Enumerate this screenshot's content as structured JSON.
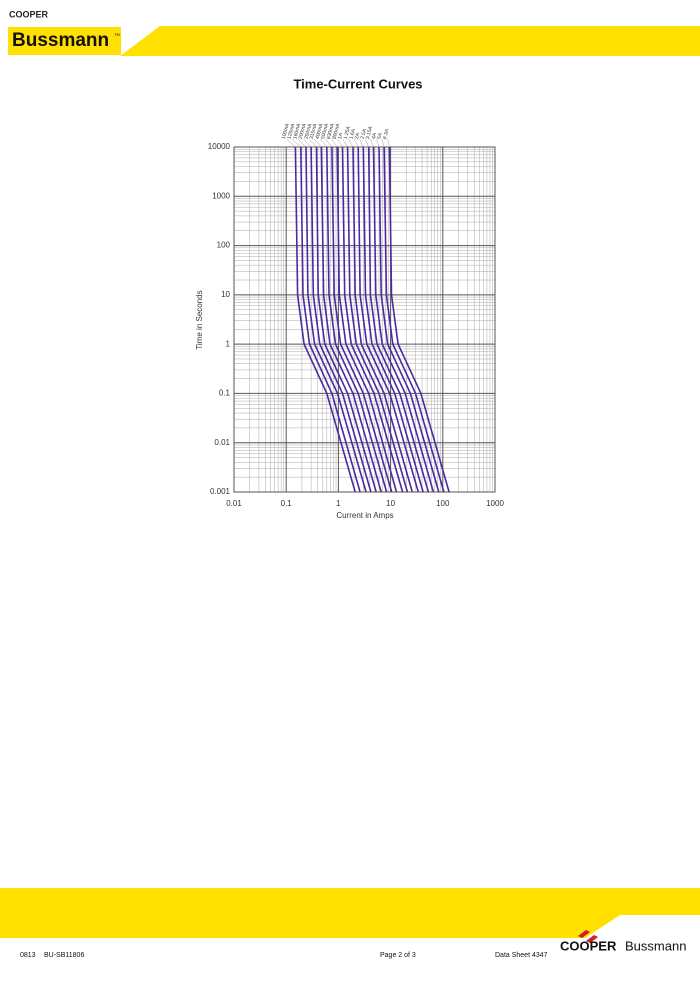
{
  "header": {
    "brand_top": "COOPER",
    "brand": "Bussmann",
    "trademark": "™"
  },
  "chart_data": {
    "type": "line",
    "title": "Time-Current Curves",
    "x_label": "Current in Amps",
    "y_label": "Time in Seconds",
    "log_x": true,
    "log_y": true,
    "grid": true,
    "color": "#4b2aa0",
    "xlim": [
      0.01,
      1000
    ],
    "xticks": [
      0.01,
      0.1,
      1,
      10,
      100,
      1000
    ],
    "ylim": [
      0.001,
      10000
    ],
    "yticks": [
      0.001,
      0.01,
      0.1,
      1,
      10,
      100,
      1000,
      10000
    ],
    "series": [
      {
        "name": "100mA",
        "x": [
          0.15,
          0.165,
          0.22,
          0.6,
          2.1
        ],
        "values": [
          10000,
          10,
          1,
          0.1,
          0.001
        ]
      },
      {
        "name": "125mA",
        "x": [
          0.19,
          0.21,
          0.28,
          0.75,
          2.6
        ],
        "values": [
          10000,
          10,
          1,
          0.1,
          0.001
        ]
      },
      {
        "name": "160mA",
        "x": [
          0.24,
          0.26,
          0.35,
          0.96,
          3.4
        ],
        "values": [
          10000,
          10,
          1,
          0.1,
          0.001
        ]
      },
      {
        "name": "200mA",
        "x": [
          0.3,
          0.33,
          0.44,
          1.2,
          4.2
        ],
        "values": [
          10000,
          10,
          1,
          0.1,
          0.001
        ]
      },
      {
        "name": "250mA",
        "x": [
          0.38,
          0.41,
          0.55,
          1.5,
          5.3
        ],
        "values": [
          10000,
          10,
          1,
          0.1,
          0.001
        ]
      },
      {
        "name": "315mA",
        "x": [
          0.47,
          0.52,
          0.69,
          1.9,
          6.6
        ],
        "values": [
          10000,
          10,
          1,
          0.1,
          0.001
        ]
      },
      {
        "name": "400mA",
        "x": [
          0.6,
          0.66,
          0.88,
          2.4,
          8.4
        ],
        "values": [
          10000,
          10,
          1,
          0.1,
          0.001
        ]
      },
      {
        "name": "500mA",
        "x": [
          0.75,
          0.83,
          1.1,
          3,
          10.5
        ],
        "values": [
          10000,
          10,
          1,
          0.1,
          0.001
        ]
      },
      {
        "name": "630mA",
        "x": [
          0.95,
          1.04,
          1.39,
          3.8,
          13
        ],
        "values": [
          10000,
          10,
          1,
          0.1,
          0.001
        ]
      },
      {
        "name": "800mA",
        "x": [
          1.2,
          1.32,
          1.76,
          4.8,
          17
        ],
        "values": [
          10000,
          10,
          1,
          0.1,
          0.001
        ]
      },
      {
        "name": "1A",
        "x": [
          1.5,
          1.65,
          2.2,
          6,
          21
        ],
        "values": [
          10000,
          10,
          1,
          0.1,
          0.001
        ]
      },
      {
        "name": "1.25A",
        "x": [
          1.9,
          2.1,
          2.75,
          7.5,
          26
        ],
        "values": [
          10000,
          10,
          1,
          0.1,
          0.001
        ]
      },
      {
        "name": "1.6A",
        "x": [
          2.4,
          2.6,
          3.5,
          9.6,
          34
        ],
        "values": [
          10000,
          10,
          1,
          0.1,
          0.001
        ]
      },
      {
        "name": "2A",
        "x": [
          3,
          3.3,
          4.4,
          12,
          42
        ],
        "values": [
          10000,
          10,
          1,
          0.1,
          0.001
        ]
      },
      {
        "name": "2.5A",
        "x": [
          3.8,
          4.1,
          5.5,
          15,
          53
        ],
        "values": [
          10000,
          10,
          1,
          0.1,
          0.001
        ]
      },
      {
        "name": "3.15A",
        "x": [
          4.7,
          5.2,
          6.9,
          19,
          66
        ],
        "values": [
          10000,
          10,
          1,
          0.1,
          0.001
        ]
      },
      {
        "name": "4A",
        "x": [
          6,
          6.6,
          8.8,
          24,
          84
        ],
        "values": [
          10000,
          10,
          1,
          0.1,
          0.001
        ]
      },
      {
        "name": "5A",
        "x": [
          7.5,
          8.3,
          11,
          30,
          105
        ],
        "values": [
          10000,
          10,
          1,
          0.1,
          0.001
        ]
      },
      {
        "name": "6.3A",
        "x": [
          9.5,
          10.4,
          13.9,
          38,
          132
        ],
        "values": [
          10000,
          10,
          1,
          0.1,
          0.001
        ]
      }
    ]
  },
  "footer": {
    "date": "0813",
    "code": "BU-SB11806",
    "page": "Page 2 of 3",
    "sheet": "Data Sheet 4347",
    "brand_a": "COOPER",
    "brand_b": "Bussmann"
  }
}
